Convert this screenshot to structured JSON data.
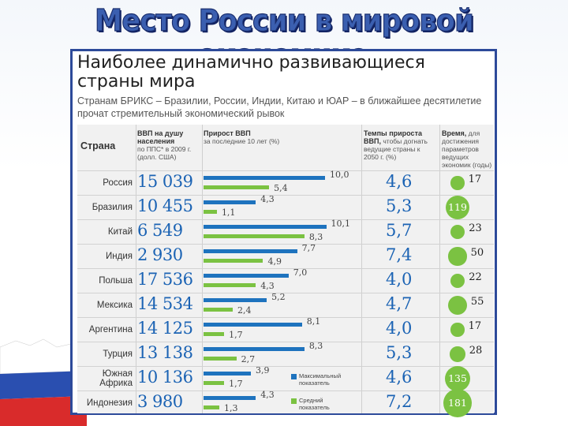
{
  "slide_title": "Место России в мировой экономике",
  "heading": "Наиболее динамично развивающиеся страны мира",
  "subtitle": "Странам БРИКС – Бразилии, России, Индии, Китаю и ЮАР – в ближайшее десятилетие прочат стремительный экономический рывок",
  "headers": {
    "country": "Страна",
    "gdp_title": "ВВП на душу населения",
    "gdp_sub": "по ППС* в 2009 г. (долл. США)",
    "growth_title": "Прирост ВВП",
    "growth_sub": "за последние 10 лет (%)",
    "rate_title": "Темпы прироста ВВП,",
    "rate_sub": "чтобы догнать ведущие страны к 2050 г. (%)",
    "time_title": "Время,",
    "time_sub": "для достижения параметров ведущих экономик (годы)"
  },
  "legend": {
    "max_label": "Максимальный показатель",
    "avg_label": "Средний показатель",
    "max_color": "#1e73be",
    "avg_color": "#7bc242"
  },
  "rows": [
    {
      "country": "Россия",
      "gdp": "15 039",
      "max": 10.0,
      "max_label": "10,0",
      "avg": 5.4,
      "avg_label": "5,4",
      "rate": "4,6",
      "years": 17,
      "years_label": "17"
    },
    {
      "country": "Бразилия",
      "gdp": "10 455",
      "max": 4.3,
      "max_label": "4,3",
      "avg": 1.1,
      "avg_label": "1,1",
      "rate": "5,3",
      "years": 119,
      "years_label": "119"
    },
    {
      "country": "Китай",
      "gdp": "6 549",
      "max": 10.1,
      "max_label": "10,1",
      "avg": 8.3,
      "avg_label": "8,3",
      "rate": "5,7",
      "years": 23,
      "years_label": "23"
    },
    {
      "country": "Индия",
      "gdp": "2 930",
      "max": 7.7,
      "max_label": "7,7",
      "avg": 4.9,
      "avg_label": "4,9",
      "rate": "7,4",
      "years": 50,
      "years_label": "50"
    },
    {
      "country": "Польша",
      "gdp": "17 536",
      "max": 7.0,
      "max_label": "7,0",
      "avg": 4.3,
      "avg_label": "4,3",
      "rate": "4,0",
      "years": 22,
      "years_label": "22"
    },
    {
      "country": "Мексика",
      "gdp": "14 534",
      "max": 5.2,
      "max_label": "5,2",
      "avg": 2.4,
      "avg_label": "2,4",
      "rate": "4,7",
      "years": 55,
      "years_label": "55"
    },
    {
      "country": "Аргентина",
      "gdp": "14 125",
      "max": 8.1,
      "max_label": "8,1",
      "avg": 1.7,
      "avg_label": "1,7",
      "rate": "4,0",
      "years": 17,
      "years_label": "17"
    },
    {
      "country": "Турция",
      "gdp": "13 138",
      "max": 8.3,
      "max_label": "8,3",
      "avg": 2.7,
      "avg_label": "2,7",
      "rate": "5,3",
      "years": 28,
      "years_label": "28"
    },
    {
      "country": "Южная Африка",
      "gdp": "10 136",
      "max": 3.9,
      "max_label": "3,9",
      "avg": 1.7,
      "avg_label": "1,7",
      "rate": "4,6",
      "years": 135,
      "years_label": "135"
    },
    {
      "country": "Индонезия",
      "gdp": "3 980",
      "max": 4.3,
      "max_label": "4,3",
      "avg": 1.3,
      "avg_label": "1,3",
      "rate": "7,2",
      "years": 181,
      "years_label": "181"
    }
  ]
}
